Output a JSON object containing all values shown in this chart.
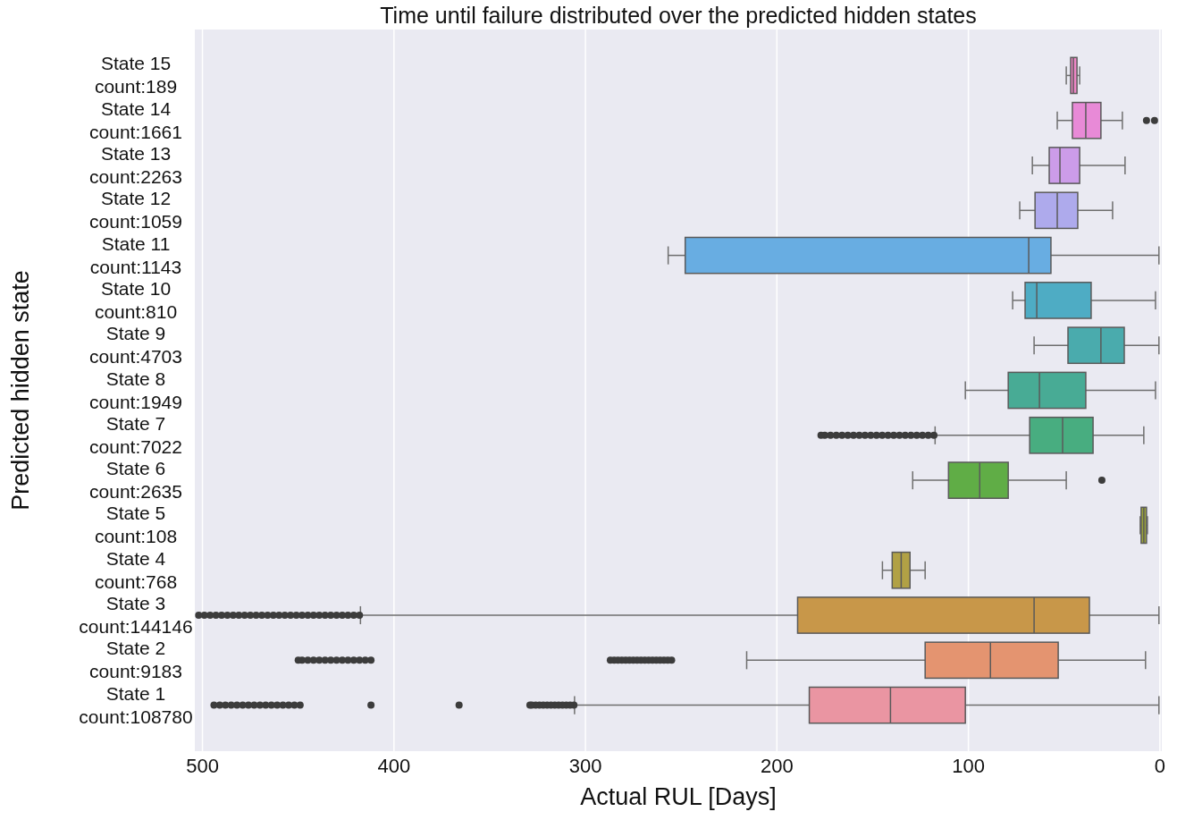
{
  "chart_data": {
    "type": "box",
    "orientation": "horizontal",
    "title": "Time until failure distributed over the predicted hidden states",
    "xlabel": "Actual RUL [Days]",
    "ylabel": "Predicted hidden state",
    "categories": [
      "State 15\ncount:189",
      "State 14\ncount:1661",
      "State 13\ncount:2263",
      "State 12\ncount:1059",
      "State 11\ncount:1143",
      "State 10\ncount:810",
      "State 9\ncount:4703",
      "State 8\ncount:1949",
      "State 7\ncount:7022",
      "State 6\ncount:2635",
      "State 5\ncount:108",
      "State 4\ncount:768",
      "State 3\ncount:144146",
      "State 2\ncount:9183",
      "State 1\ncount:108780"
    ],
    "colors": [
      "#ef86c6",
      "#e88ad7",
      "#cc9ce9",
      "#aeaaec",
      "#68ade2",
      "#4eacc4",
      "#4aabad",
      "#48ab95",
      "#48ad80",
      "#60ad46",
      "#9aa23a",
      "#b1a145",
      "#c89749",
      "#e49470",
      "#ea95a2"
    ],
    "boxes": [
      {
        "low": 41.9,
        "q1": 43.3,
        "median": 45.2,
        "q3": 46.6,
        "high": 48.9
      },
      {
        "low": 19.6,
        "q1": 30.8,
        "median": 38.7,
        "q3": 45.7,
        "high": 53.6,
        "outliers": [
          7,
          2.8
        ]
      },
      {
        "low": 18.2,
        "q1": 41.9,
        "median": 52.2,
        "q3": 57.8,
        "high": 66.6
      },
      {
        "low": 24.7,
        "q1": 42.9,
        "median": 53.6,
        "q3": 65.2,
        "high": 73.2
      },
      {
        "low": 0.5,
        "q1": 56.9,
        "median": 68.5,
        "q3": 247.9,
        "high": 256.8
      },
      {
        "low": 2.3,
        "q1": 35.9,
        "median": 64.3,
        "q3": 70.4,
        "high": 76.9
      },
      {
        "low": 0.5,
        "q1": 18.6,
        "median": 30.8,
        "q3": 48,
        "high": 65.7
      },
      {
        "low": 2.3,
        "q1": 38.7,
        "median": 62.9,
        "q3": 79.2,
        "high": 101.6
      },
      {
        "low": 8.4,
        "q1": 34.9,
        "median": 50.8,
        "q3": 68,
        "high": 117.4,
        "outliers": [
          118,
          121,
          124,
          127,
          130,
          133,
          136,
          139,
          142,
          145,
          148,
          151,
          154,
          157,
          160,
          163,
          166,
          169,
          172,
          175,
          177
        ]
      },
      {
        "low": 48.9,
        "q1": 79.2,
        "median": 94.1,
        "q3": 110.4,
        "high": 129.1,
        "outliers": [
          30.3
        ]
      },
      {
        "low": 6.5,
        "q1": 7,
        "median": 8.4,
        "q3": 9.8,
        "high": 10.3
      },
      {
        "low": 122.6,
        "q1": 130.5,
        "median": 135.1,
        "q3": 139.8,
        "high": 144.9
      },
      {
        "low": 0.5,
        "q1": 36.8,
        "median": 65.7,
        "q3": 189.2,
        "high": 417.5,
        "outliers": [
          418,
          421,
          424,
          427,
          430,
          433,
          436,
          439,
          442,
          445,
          448,
          451,
          454,
          457,
          460,
          463,
          466,
          469,
          472,
          475,
          478,
          481,
          484,
          487,
          490,
          493,
          496,
          499,
          502
        ]
      },
      {
        "low": 7.5,
        "q1": 53.1,
        "median": 88.5,
        "q3": 122.6,
        "high": 215.8,
        "outliers": [
          255,
          257,
          259,
          261,
          263,
          265,
          267,
          269,
          271,
          273,
          275,
          277,
          279,
          281,
          283,
          285,
          287,
          412,
          415,
          418,
          421,
          424,
          427,
          430,
          433,
          436,
          439,
          442,
          445,
          448,
          450
        ]
      },
      {
        "low": 0.5,
        "q1": 101.6,
        "median": 140.7,
        "q3": 183.1,
        "high": 305.7,
        "outliers": [
          306,
          308,
          310,
          312,
          314,
          316,
          318,
          320,
          322,
          324,
          326,
          328,
          329,
          366,
          412,
          449,
          452,
          455,
          458,
          461,
          464,
          467,
          470,
          473,
          476,
          479,
          482,
          485,
          488,
          491,
          494
        ]
      }
    ],
    "xlim": [
      504,
      -1
    ],
    "xticks": [
      500,
      400,
      300,
      200,
      100,
      0
    ],
    "grid": "x"
  }
}
